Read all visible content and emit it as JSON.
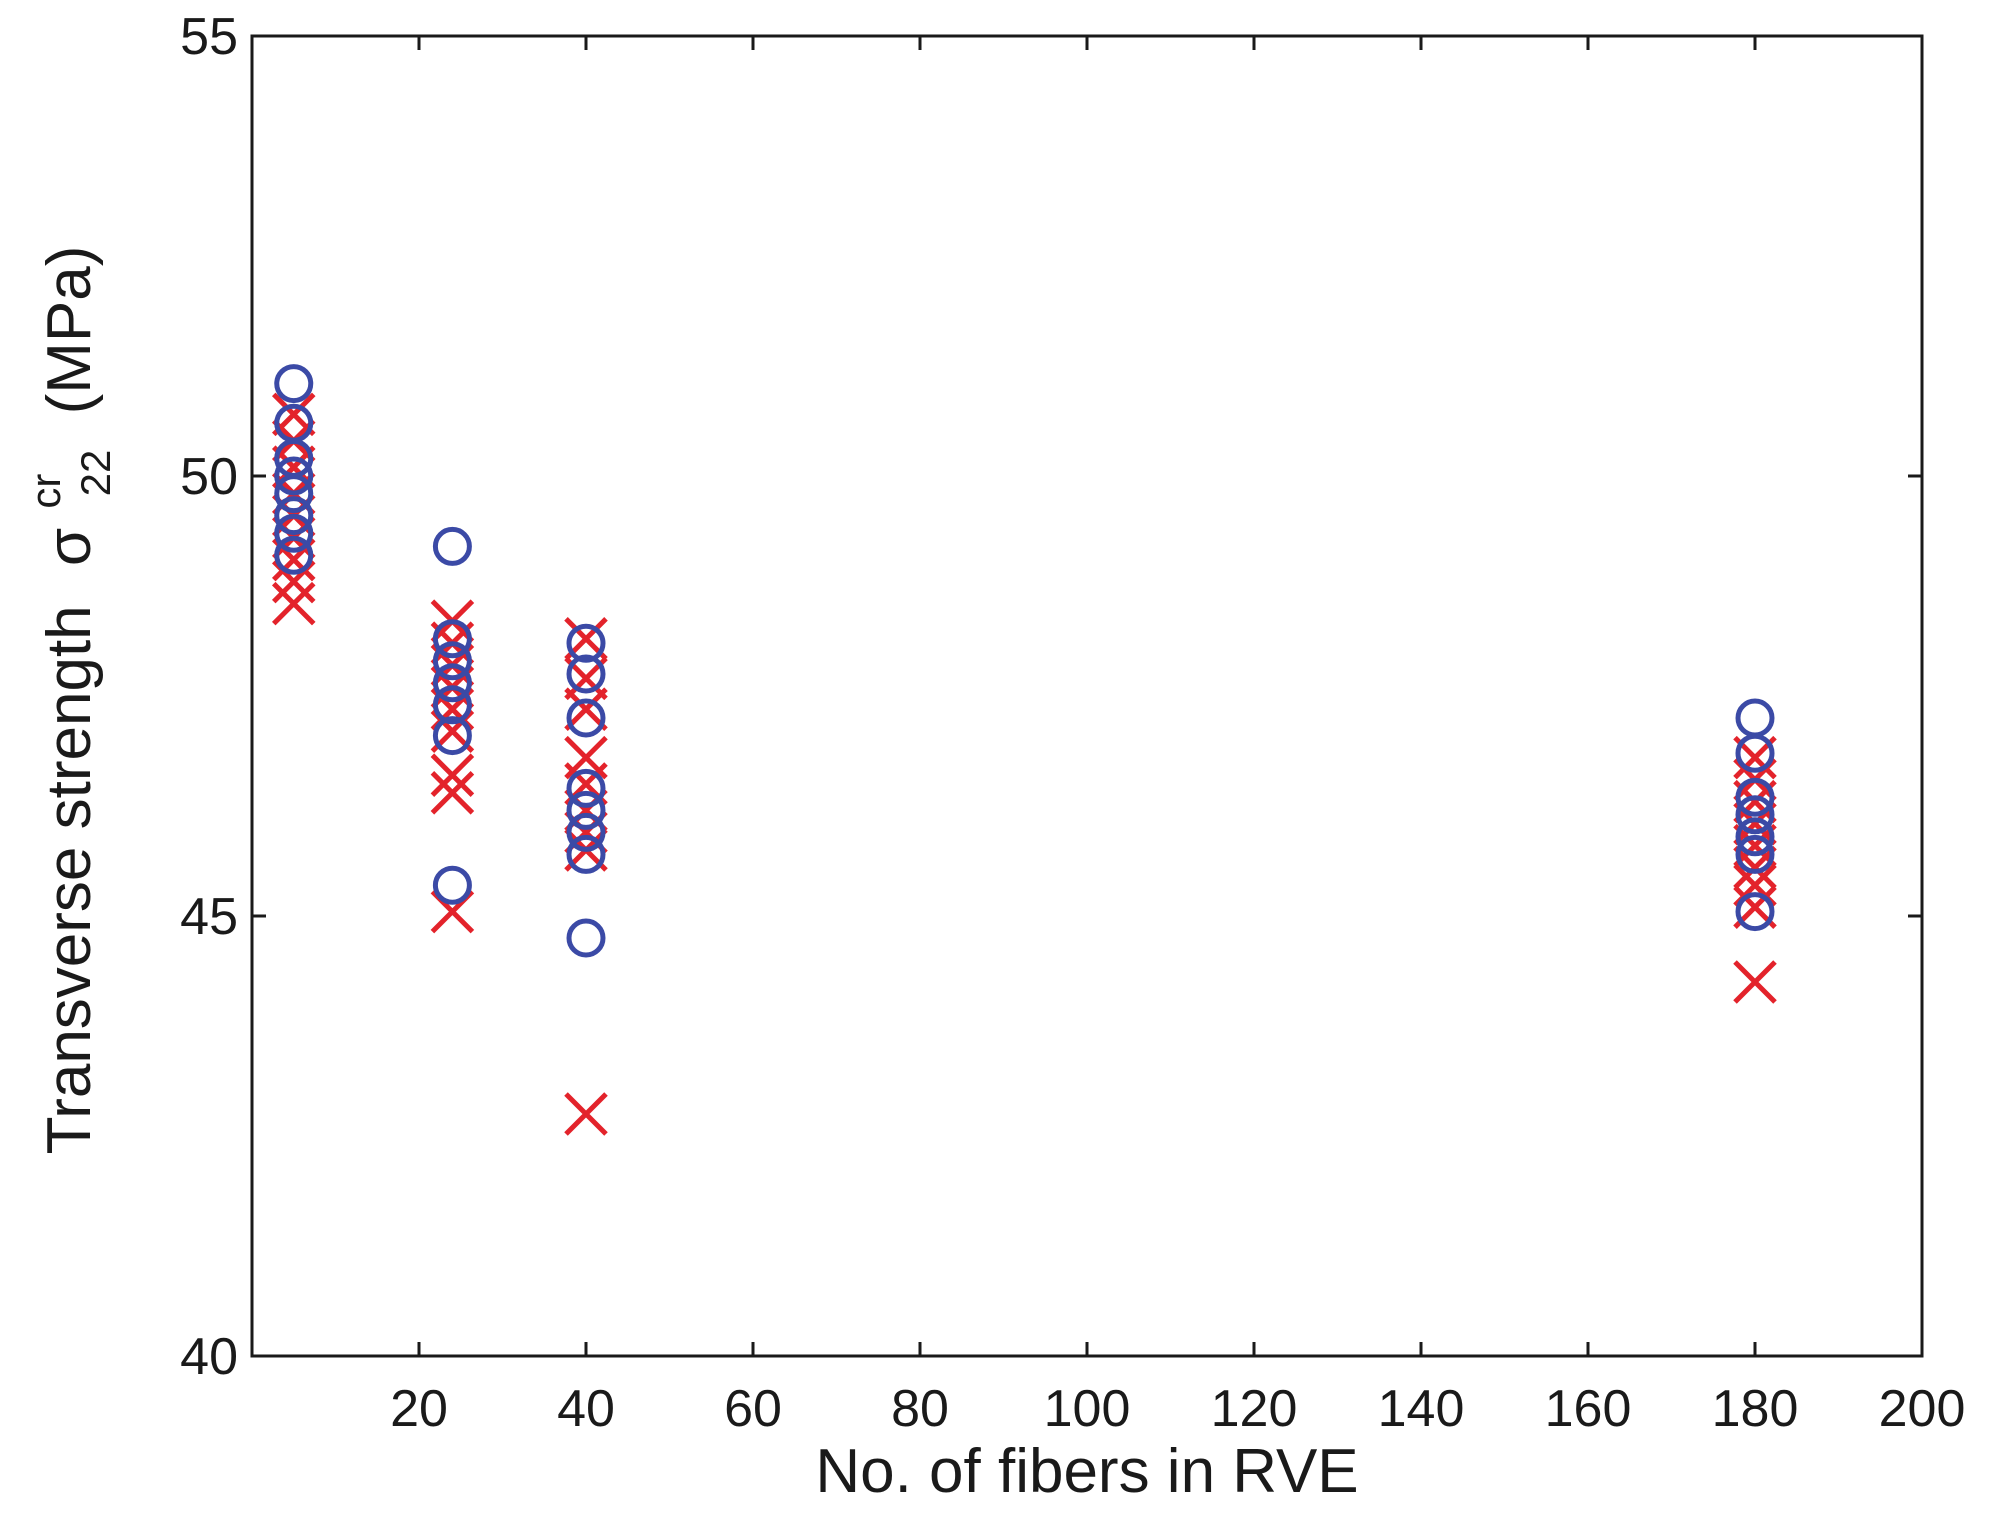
{
  "chart_data": {
    "type": "scatter",
    "xlabel": "No. of fibers in RVE",
    "ylabel": {
      "prefix": "Transverse strength",
      "symbol": "σ",
      "superscript": "cr",
      "subscript": "22",
      "unit": "(MPa)"
    },
    "xlim": [
      0,
      200
    ],
    "ylim": [
      40,
      55
    ],
    "xticks": [
      20,
      40,
      60,
      80,
      100,
      120,
      140,
      160,
      180,
      200
    ],
    "yticks": [
      40,
      45,
      50,
      55
    ],
    "colors": {
      "circle": "#3b4aa6",
      "cross": "#e3232b",
      "axis": "#1a1a1a"
    },
    "series": [
      {
        "name": "circles",
        "marker": "o",
        "points": [
          {
            "x": 5,
            "y": 51.05
          },
          {
            "x": 5,
            "y": 50.6
          },
          {
            "x": 5,
            "y": 50.2
          },
          {
            "x": 5,
            "y": 50.0
          },
          {
            "x": 5,
            "y": 49.8
          },
          {
            "x": 5,
            "y": 49.55
          },
          {
            "x": 5,
            "y": 49.35
          },
          {
            "x": 5,
            "y": 49.1
          },
          {
            "x": 24,
            "y": 49.2
          },
          {
            "x": 24,
            "y": 48.15
          },
          {
            "x": 24,
            "y": 47.9
          },
          {
            "x": 24,
            "y": 47.65
          },
          {
            "x": 24,
            "y": 47.4
          },
          {
            "x": 24,
            "y": 47.05
          },
          {
            "x": 24,
            "y": 45.35
          },
          {
            "x": 40,
            "y": 48.1
          },
          {
            "x": 40,
            "y": 47.75
          },
          {
            "x": 40,
            "y": 47.25
          },
          {
            "x": 40,
            "y": 46.45
          },
          {
            "x": 40,
            "y": 46.2
          },
          {
            "x": 40,
            "y": 45.95
          },
          {
            "x": 40,
            "y": 45.7
          },
          {
            "x": 40,
            "y": 44.75
          },
          {
            "x": 180,
            "y": 47.25
          },
          {
            "x": 180,
            "y": 46.85
          },
          {
            "x": 180,
            "y": 46.35
          },
          {
            "x": 180,
            "y": 46.15
          },
          {
            "x": 180,
            "y": 45.9
          },
          {
            "x": 180,
            "y": 45.7
          },
          {
            "x": 180,
            "y": 45.05
          }
        ]
      },
      {
        "name": "crosses",
        "marker": "x",
        "points": [
          {
            "x": 5,
            "y": 50.7
          },
          {
            "x": 5,
            "y": 50.4
          },
          {
            "x": 5,
            "y": 50.1
          },
          {
            "x": 5,
            "y": 49.8
          },
          {
            "x": 5,
            "y": 49.55
          },
          {
            "x": 5,
            "y": 49.3
          },
          {
            "x": 5,
            "y": 49.05
          },
          {
            "x": 5,
            "y": 48.8
          },
          {
            "x": 5,
            "y": 48.55
          },
          {
            "x": 24,
            "y": 48.35
          },
          {
            "x": 24,
            "y": 48.1
          },
          {
            "x": 24,
            "y": 47.85
          },
          {
            "x": 24,
            "y": 47.6
          },
          {
            "x": 24,
            "y": 47.35
          },
          {
            "x": 24,
            "y": 47.1
          },
          {
            "x": 24,
            "y": 46.6
          },
          {
            "x": 24,
            "y": 46.4
          },
          {
            "x": 24,
            "y": 45.05
          },
          {
            "x": 40,
            "y": 48.15
          },
          {
            "x": 40,
            "y": 47.7
          },
          {
            "x": 40,
            "y": 47.35
          },
          {
            "x": 40,
            "y": 46.8
          },
          {
            "x": 40,
            "y": 46.5
          },
          {
            "x": 40,
            "y": 46.2
          },
          {
            "x": 40,
            "y": 45.95
          },
          {
            "x": 40,
            "y": 45.75
          },
          {
            "x": 40,
            "y": 42.75
          },
          {
            "x": 180,
            "y": 46.8
          },
          {
            "x": 180,
            "y": 46.55
          },
          {
            "x": 180,
            "y": 46.3
          },
          {
            "x": 180,
            "y": 46.05
          },
          {
            "x": 180,
            "y": 45.8
          },
          {
            "x": 180,
            "y": 45.55
          },
          {
            "x": 180,
            "y": 45.35
          },
          {
            "x": 180,
            "y": 45.1
          },
          {
            "x": 180,
            "y": 44.25
          }
        ]
      }
    ]
  }
}
